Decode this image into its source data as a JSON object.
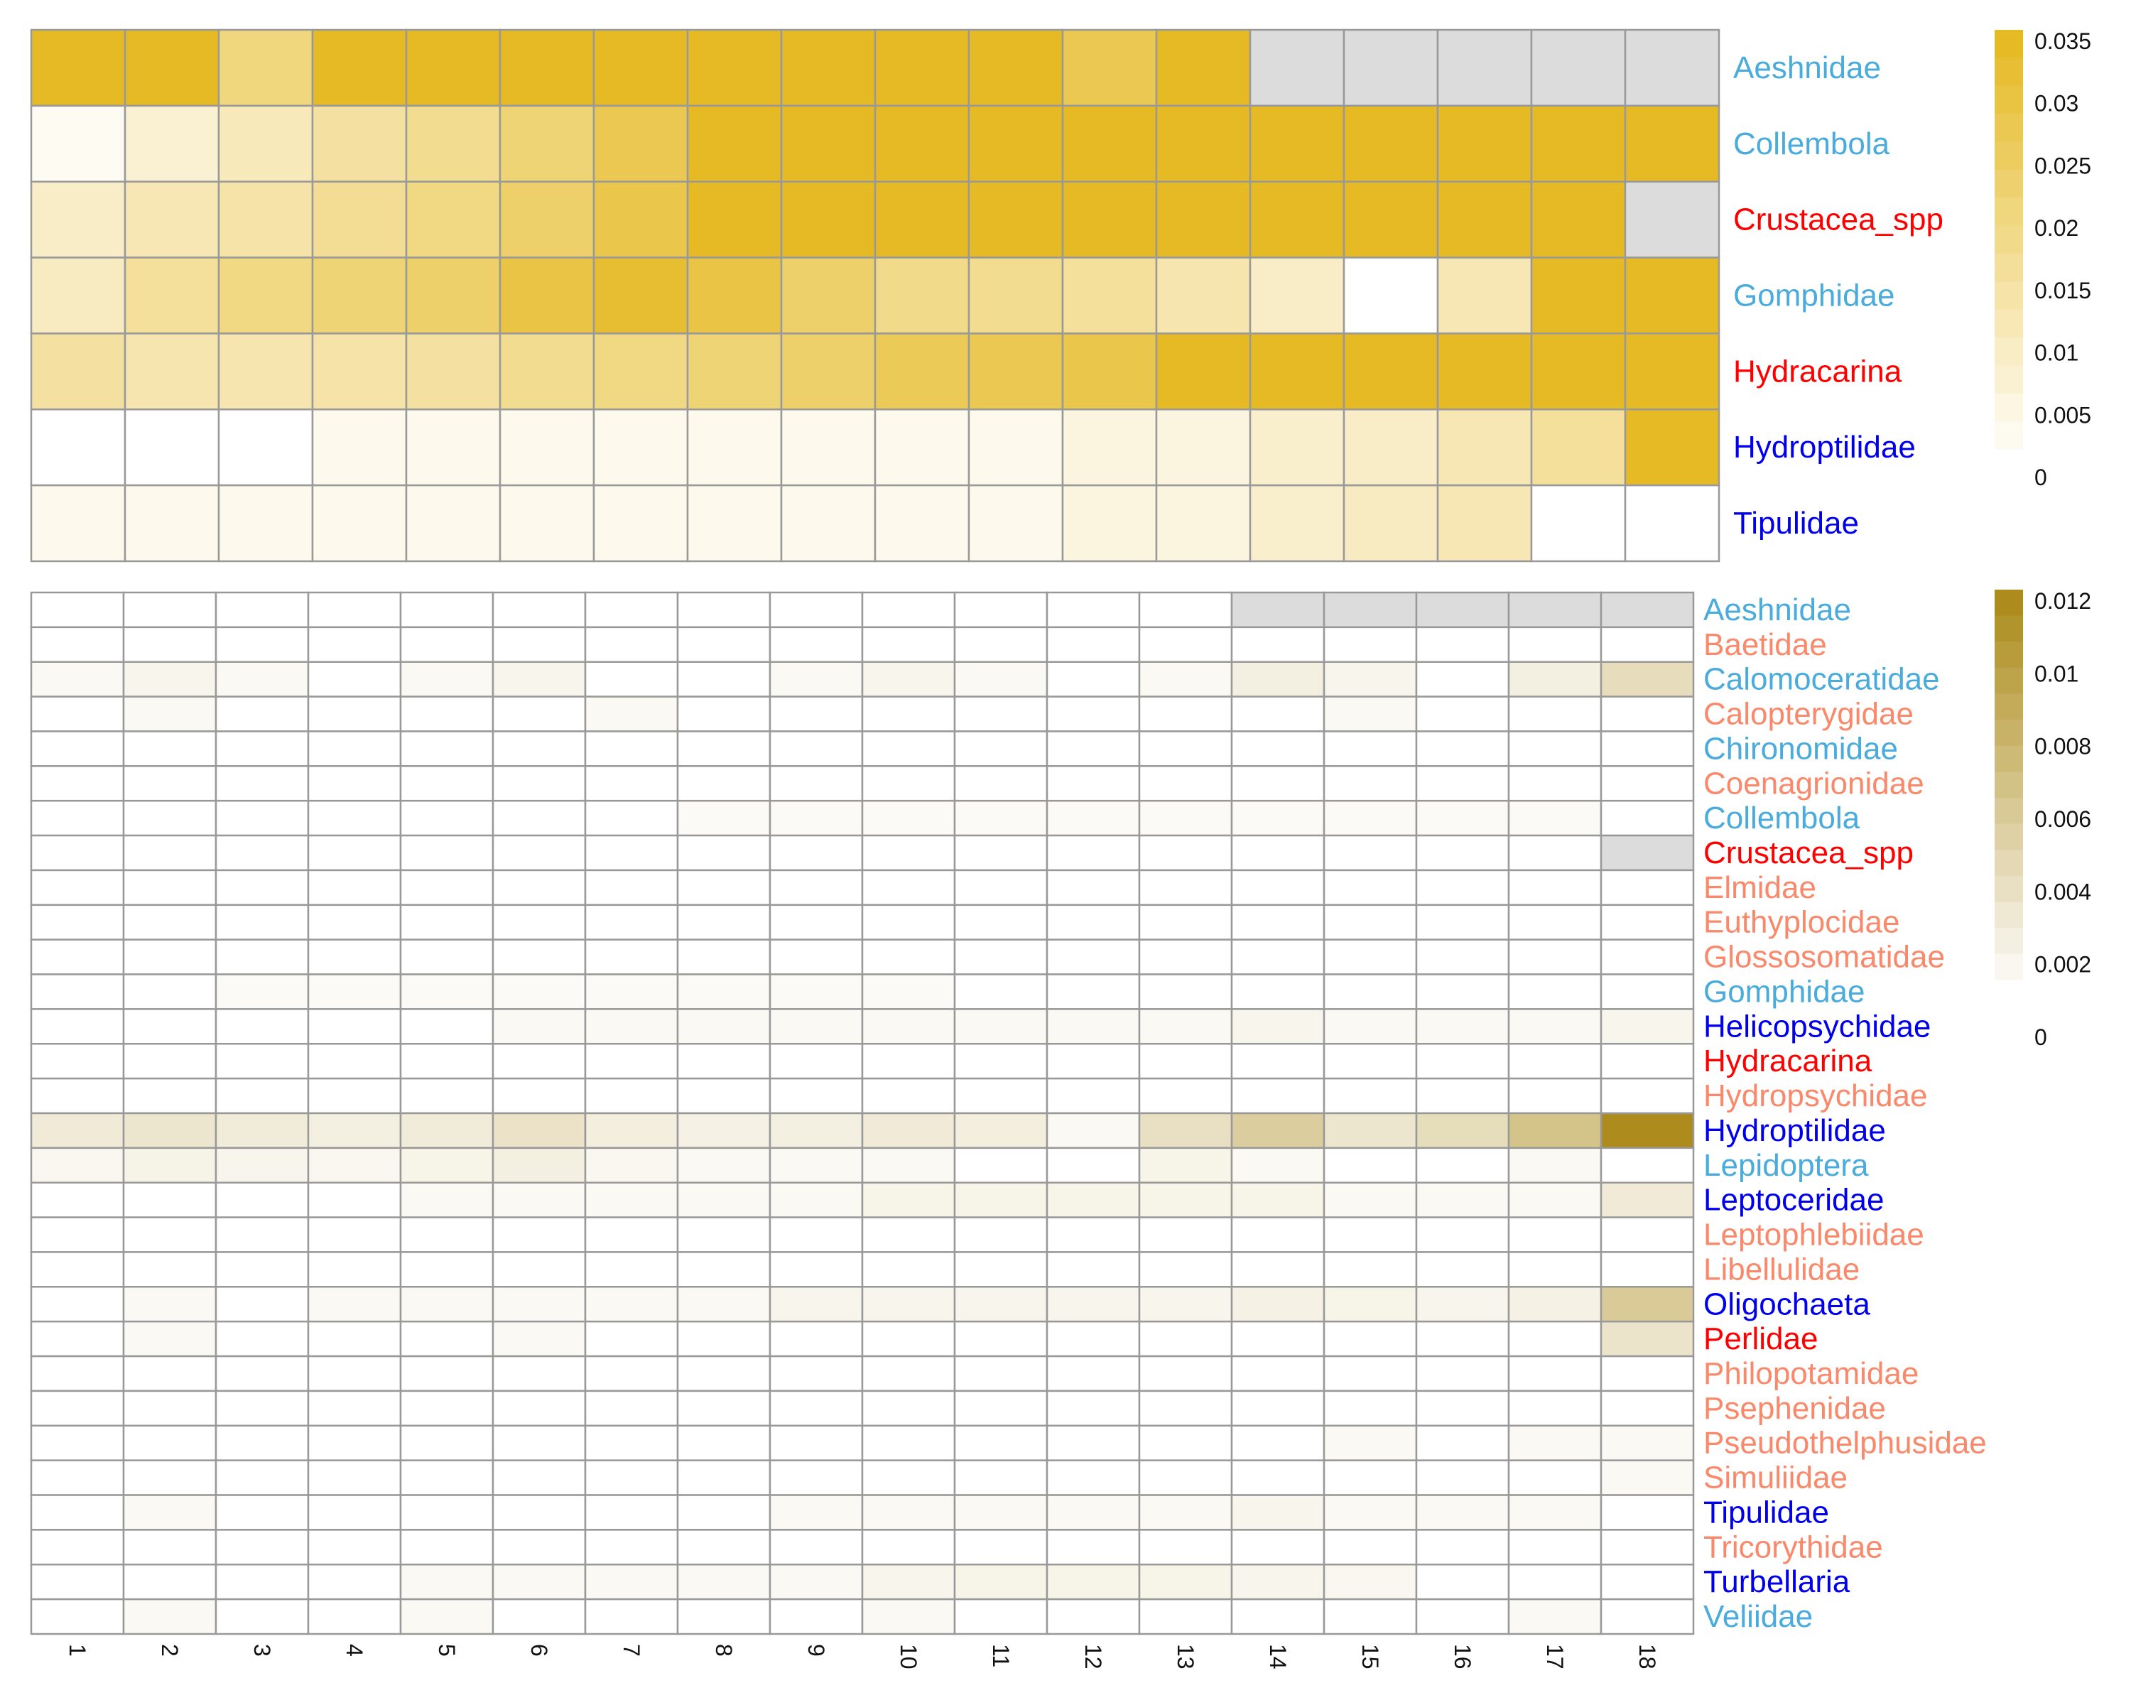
{
  "chart_data": [
    {
      "type": "heatmap",
      "rows": [
        "Aeshnidae",
        "Collembola",
        "Crustacea_spp",
        "Gomphidae",
        "Hydracarina",
        "Hydroptilidae",
        "Tipulidae"
      ],
      "row_colors": [
        "#4aabdd",
        "#4aabdd",
        "#ff0000",
        "#4aabdd",
        "#ff0000",
        "#0000ee",
        "#0000ee"
      ],
      "columns": [
        "1",
        "2",
        "3",
        "4",
        "5",
        "6",
        "7",
        "8",
        "9",
        "10",
        "11",
        "12",
        "13",
        "14",
        "15",
        "16",
        "17",
        "18"
      ],
      "values": [
        [
          0.035,
          0.035,
          0.021,
          0.035,
          0.035,
          0.035,
          0.035,
          0.035,
          0.035,
          0.035,
          0.035,
          0.028,
          0.035,
          null,
          null,
          null,
          null,
          null
        ],
        [
          0.002,
          0.007,
          0.011,
          0.015,
          0.018,
          0.022,
          0.028,
          0.035,
          0.035,
          0.035,
          0.035,
          0.035,
          0.035,
          0.035,
          0.035,
          0.035,
          0.035,
          0.035
        ],
        [
          0.009,
          0.012,
          0.014,
          0.017,
          0.02,
          0.024,
          0.029,
          0.035,
          0.035,
          0.035,
          0.035,
          0.035,
          0.035,
          0.035,
          0.035,
          0.035,
          0.035,
          null
        ],
        [
          0.01,
          0.016,
          0.02,
          0.022,
          0.024,
          0.03,
          0.033,
          0.03,
          0.024,
          0.019,
          0.018,
          0.016,
          0.013,
          0.009,
          0,
          0.012,
          0.035,
          0.035
        ],
        [
          0.015,
          0.013,
          0.013,
          0.014,
          0.015,
          0.018,
          0.02,
          0.022,
          0.024,
          0.027,
          0.028,
          0.029,
          0.035,
          0.035,
          0.035,
          0.035,
          0.035,
          0.035
        ],
        [
          0,
          0,
          0,
          0.003,
          0.003,
          0.003,
          0.003,
          0.003,
          0.003,
          0.003,
          0.003,
          0.005,
          0.005,
          0.008,
          0.009,
          0.012,
          0.016,
          0.035
        ],
        [
          0.003,
          0.003,
          0.003,
          0.003,
          0.003,
          0.003,
          0.003,
          0.003,
          0.003,
          0.003,
          0.003,
          0.005,
          0.005,
          0.008,
          0.01,
          0.012,
          0,
          0
        ]
      ],
      "missing_color": "#dcdcdc",
      "colorbar": {
        "ticks": [
          "0.035",
          "0.03",
          "0.025",
          "0.02",
          "0.015",
          "0.01",
          "0.005",
          "0"
        ],
        "min": 0,
        "max": 0.035
      },
      "color_low": "#ffffff",
      "color_high": "#e6ba25"
    },
    {
      "type": "heatmap",
      "rows": [
        "Aeshnidae",
        "Baetidae",
        "Calomoceratidae",
        "Calopterygidae",
        "Chironomidae",
        "Coenagrionidae",
        "Collembola",
        "Crustacea_spp",
        "Elmidae",
        "Euthyplocidae",
        "Glossosomatidae",
        "Gomphidae",
        "Helicopsychidae",
        "Hydracarina",
        "Hydropsychidae",
        "Hydroptilidae",
        "Lepidoptera",
        "Leptoceridae",
        "Leptophlebiidae",
        "Libellulidae",
        "Oligochaeta",
        "Perlidae",
        "Philopotamidae",
        "Psephenidae",
        "Pseudothelphusidae",
        "Simuliidae",
        "Tipulidae",
        "Tricorythidae",
        "Turbellaria",
        "Veliidae"
      ],
      "row_colors": [
        "#4aabdd",
        "#f9896a",
        "#4aabdd",
        "#f9896a",
        "#4aabdd",
        "#f9896a",
        "#4aabdd",
        "#ff0000",
        "#f9896a",
        "#f9896a",
        "#f9896a",
        "#4aabdd",
        "#0000ee",
        "#ff0000",
        "#f9896a",
        "#0000ee",
        "#4aabdd",
        "#0000ee",
        "#f9896a",
        "#f9896a",
        "#0000ee",
        "#ff0000",
        "#f9896a",
        "#f9896a",
        "#f9896a",
        "#f9896a",
        "#0000ee",
        "#f9896a",
        "#0000ee",
        "#4aabdd"
      ],
      "columns": [
        "1",
        "2",
        "3",
        "4",
        "5",
        "6",
        "7",
        "8",
        "9",
        "10",
        "11",
        "12",
        "13",
        "14",
        "15",
        "16",
        "17",
        "18"
      ],
      "values": [
        [
          0,
          0,
          0,
          0,
          0,
          0,
          0,
          0,
          0,
          0,
          0,
          0,
          0,
          null,
          null,
          null,
          null,
          null
        ],
        [
          0,
          0,
          0,
          0,
          0,
          0,
          0,
          0,
          0,
          0,
          0,
          0,
          0,
          0,
          0,
          0,
          0,
          0
        ],
        [
          0.0006,
          0.001,
          0.0006,
          0,
          0.0006,
          0.001,
          0,
          0,
          0.0006,
          0.001,
          0.0006,
          0,
          0.0006,
          0.0016,
          0.001,
          0,
          0.0016,
          0.0035
        ],
        [
          0,
          0.0006,
          0,
          0,
          0,
          0,
          0.0006,
          0,
          0,
          0,
          0,
          0,
          0,
          0,
          0.0006,
          0,
          0,
          0
        ],
        [
          0,
          0,
          0,
          0,
          0,
          0,
          0,
          0,
          0,
          0,
          0,
          0,
          0,
          0,
          0,
          0,
          0,
          0
        ],
        [
          0,
          0,
          0,
          0,
          0,
          0,
          0,
          0,
          0,
          0,
          0,
          0,
          0,
          0,
          0,
          0,
          0,
          0
        ],
        [
          0,
          0,
          0,
          0,
          0,
          0,
          0,
          0.0005,
          0.0005,
          0.0005,
          0.0005,
          0.0005,
          0.0005,
          0.0005,
          0.0005,
          0.0005,
          0.0005,
          0
        ],
        [
          0,
          0,
          0,
          0,
          0,
          0,
          0,
          0,
          0,
          0,
          0,
          0,
          0,
          0,
          0,
          0,
          0,
          null
        ],
        [
          0,
          0,
          0,
          0,
          0,
          0,
          0,
          0,
          0,
          0,
          0,
          0,
          0,
          0,
          0,
          0,
          0,
          0
        ],
        [
          0,
          0,
          0,
          0,
          0,
          0,
          0,
          0,
          0,
          0,
          0,
          0,
          0,
          0,
          0,
          0,
          0,
          0
        ],
        [
          0,
          0,
          0,
          0,
          0,
          0,
          0,
          0,
          0,
          0,
          0,
          0,
          0,
          0,
          0,
          0,
          0,
          0
        ],
        [
          0,
          0,
          0.0005,
          0.0005,
          0.0005,
          0.0005,
          0.0005,
          0.0005,
          0.0005,
          0.0005,
          0,
          0,
          0,
          0,
          0,
          0,
          0,
          0
        ],
        [
          0,
          0,
          0,
          0,
          0,
          0.0006,
          0.0006,
          0.0006,
          0.0006,
          0.0006,
          0.0006,
          0.0006,
          0.0006,
          0.001,
          0.0006,
          0.0006,
          0.0006,
          0.001
        ],
        [
          0,
          0,
          0,
          0,
          0,
          0,
          0,
          0,
          0,
          0,
          0,
          0,
          0,
          0,
          0,
          0,
          0,
          0
        ],
        [
          0,
          0,
          0,
          0,
          0,
          0,
          0,
          0,
          0,
          0,
          0,
          0,
          0,
          0,
          0,
          0,
          0,
          0
        ],
        [
          0.0022,
          0.0026,
          0.002,
          0.0016,
          0.002,
          0.003,
          0.0018,
          0.0014,
          0.0016,
          0.0022,
          0.0018,
          0.0006,
          0.0032,
          0.0052,
          0.0026,
          0.0036,
          0.0062,
          0.012
        ],
        [
          0.0008,
          0.0013,
          0.001,
          0.0008,
          0.0012,
          0.0016,
          0.0008,
          0.0006,
          0.0006,
          0.0006,
          0,
          0,
          0.0012,
          0.0006,
          0,
          0,
          0.0006,
          0
        ],
        [
          0,
          0,
          0,
          0,
          0.0006,
          0.0006,
          0.0006,
          0.0006,
          0.0006,
          0.0012,
          0.0012,
          0.0012,
          0.0012,
          0.0012,
          0.0006,
          0.0006,
          0.0006,
          0.0022
        ],
        [
          0,
          0,
          0,
          0,
          0,
          0,
          0,
          0,
          0,
          0,
          0,
          0,
          0,
          0,
          0,
          0,
          0,
          0
        ],
        [
          0,
          0,
          0,
          0,
          0,
          0,
          0,
          0,
          0,
          0,
          0,
          0,
          0,
          0,
          0,
          0,
          0,
          0
        ],
        [
          0,
          0.0006,
          0,
          0.0006,
          0.0006,
          0.0006,
          0.0006,
          0.0006,
          0.001,
          0.001,
          0.001,
          0.001,
          0.001,
          0.0014,
          0.0012,
          0.001,
          0.0014,
          0.0055
        ],
        [
          0,
          0.0006,
          0,
          0,
          0,
          0.0006,
          0,
          0,
          0,
          0,
          0,
          0,
          0,
          0,
          0,
          0,
          0,
          0.0028
        ],
        [
          0,
          0,
          0,
          0,
          0,
          0,
          0,
          0,
          0,
          0,
          0,
          0,
          0,
          0,
          0,
          0,
          0,
          0
        ],
        [
          0,
          0,
          0,
          0,
          0,
          0,
          0,
          0,
          0,
          0,
          0,
          0,
          0,
          0,
          0,
          0,
          0,
          0
        ],
        [
          0,
          0,
          0,
          0,
          0,
          0,
          0,
          0,
          0,
          0,
          0,
          0,
          0,
          0,
          0.0006,
          0,
          0.0006,
          0.0006
        ],
        [
          0,
          0,
          0,
          0,
          0,
          0,
          0,
          0,
          0,
          0,
          0,
          0,
          0,
          0,
          0,
          0,
          0,
          0.0006
        ],
        [
          0,
          0.0006,
          0,
          0,
          0,
          0,
          0,
          0,
          0.0006,
          0.0006,
          0.0006,
          0.0006,
          0.0006,
          0.001,
          0.0006,
          0.0006,
          0.0006,
          0
        ],
        [
          0,
          0,
          0,
          0,
          0,
          0,
          0,
          0,
          0,
          0,
          0,
          0,
          0,
          0,
          0,
          0,
          0,
          0
        ],
        [
          0,
          0,
          0,
          0,
          0.0006,
          0.0006,
          0.0006,
          0.0006,
          0.0006,
          0.001,
          0.0012,
          0.0012,
          0.0012,
          0.001,
          0.0008,
          0,
          0,
          0
        ],
        [
          0,
          0.0006,
          0,
          0,
          0.0006,
          0,
          0,
          0,
          0,
          0.0006,
          0,
          0,
          0,
          0,
          0,
          0,
          0.0006,
          0
        ]
      ],
      "missing_color": "#dcdcdc",
      "colorbar": {
        "ticks": [
          "0.012",
          "0.01",
          "0.008",
          "0.006",
          "0.004",
          "0.002",
          "0"
        ],
        "min": 0,
        "max": 0.012
      },
      "color_low": "#ffffff",
      "color_high": "#ad8c1d"
    }
  ]
}
